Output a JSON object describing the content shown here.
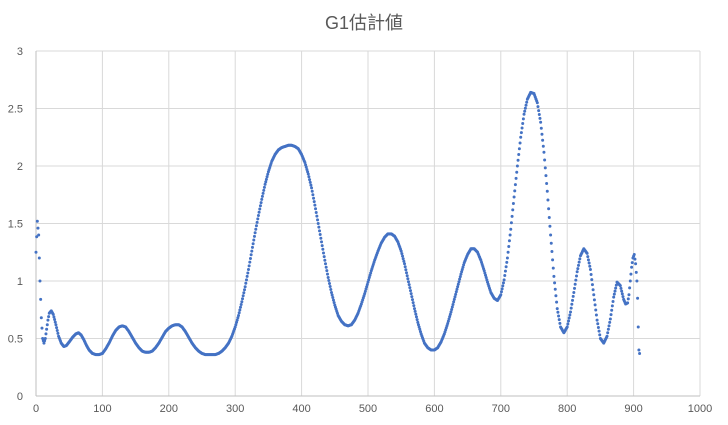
{
  "chart_data": {
    "type": "scatter",
    "title": "G1估計値",
    "xlabel": "",
    "ylabel": "",
    "xlim": [
      0,
      1000
    ],
    "ylim": [
      0,
      3
    ],
    "x_ticks": [
      0,
      100,
      200,
      300,
      400,
      500,
      600,
      700,
      800,
      900,
      1000
    ],
    "y_ticks": [
      0,
      0.5,
      1,
      1.5,
      2,
      2.5,
      3
    ],
    "grid": true,
    "legend": "none",
    "marker_color": "#4472c4",
    "series": [
      {
        "values": [
          [
            0,
            1.25
          ],
          [
            2,
            1.52
          ],
          [
            4,
            1.4
          ],
          [
            6,
            1.0
          ],
          [
            8,
            0.68
          ],
          [
            10,
            0.5
          ],
          [
            12,
            0.46
          ],
          [
            14,
            0.5
          ],
          [
            16,
            0.58
          ],
          [
            18,
            0.66
          ],
          [
            20,
            0.72
          ],
          [
            23,
            0.74
          ],
          [
            26,
            0.71
          ],
          [
            30,
            0.62
          ],
          [
            34,
            0.52
          ],
          [
            38,
            0.46
          ],
          [
            42,
            0.43
          ],
          [
            46,
            0.44
          ],
          [
            50,
            0.47
          ],
          [
            55,
            0.51
          ],
          [
            60,
            0.54
          ],
          [
            64,
            0.55
          ],
          [
            68,
            0.53
          ],
          [
            72,
            0.49
          ],
          [
            76,
            0.44
          ],
          [
            80,
            0.4
          ],
          [
            85,
            0.37
          ],
          [
            90,
            0.36
          ],
          [
            95,
            0.36
          ],
          [
            100,
            0.37
          ],
          [
            105,
            0.41
          ],
          [
            110,
            0.46
          ],
          [
            115,
            0.52
          ],
          [
            120,
            0.57
          ],
          [
            125,
            0.6
          ],
          [
            130,
            0.61
          ],
          [
            135,
            0.6
          ],
          [
            140,
            0.56
          ],
          [
            145,
            0.51
          ],
          [
            150,
            0.46
          ],
          [
            155,
            0.42
          ],
          [
            160,
            0.39
          ],
          [
            165,
            0.38
          ],
          [
            170,
            0.38
          ],
          [
            175,
            0.39
          ],
          [
            180,
            0.42
          ],
          [
            185,
            0.46
          ],
          [
            190,
            0.51
          ],
          [
            195,
            0.56
          ],
          [
            200,
            0.59
          ],
          [
            205,
            0.61
          ],
          [
            210,
            0.62
          ],
          [
            215,
            0.62
          ],
          [
            220,
            0.6
          ],
          [
            225,
            0.56
          ],
          [
            230,
            0.51
          ],
          [
            235,
            0.46
          ],
          [
            240,
            0.42
          ],
          [
            245,
            0.39
          ],
          [
            250,
            0.37
          ],
          [
            255,
            0.36
          ],
          [
            260,
            0.36
          ],
          [
            265,
            0.36
          ],
          [
            270,
            0.36
          ],
          [
            275,
            0.37
          ],
          [
            280,
            0.39
          ],
          [
            285,
            0.42
          ],
          [
            290,
            0.46
          ],
          [
            295,
            0.52
          ],
          [
            300,
            0.6
          ],
          [
            305,
            0.7
          ],
          [
            310,
            0.82
          ],
          [
            315,
            0.95
          ],
          [
            320,
            1.1
          ],
          [
            325,
            1.26
          ],
          [
            330,
            1.42
          ],
          [
            335,
            1.57
          ],
          [
            340,
            1.71
          ],
          [
            345,
            1.84
          ],
          [
            350,
            1.95
          ],
          [
            355,
            2.04
          ],
          [
            360,
            2.1
          ],
          [
            365,
            2.14
          ],
          [
            370,
            2.16
          ],
          [
            375,
            2.17
          ],
          [
            380,
            2.18
          ],
          [
            385,
            2.18
          ],
          [
            390,
            2.17
          ],
          [
            395,
            2.15
          ],
          [
            400,
            2.1
          ],
          [
            405,
            2.03
          ],
          [
            410,
            1.93
          ],
          [
            415,
            1.81
          ],
          [
            420,
            1.66
          ],
          [
            425,
            1.5
          ],
          [
            430,
            1.34
          ],
          [
            435,
            1.18
          ],
          [
            440,
            1.03
          ],
          [
            445,
            0.9
          ],
          [
            450,
            0.79
          ],
          [
            455,
            0.7
          ],
          [
            460,
            0.65
          ],
          [
            465,
            0.62
          ],
          [
            470,
            0.61
          ],
          [
            475,
            0.62
          ],
          [
            480,
            0.66
          ],
          [
            485,
            0.72
          ],
          [
            490,
            0.8
          ],
          [
            495,
            0.89
          ],
          [
            500,
            0.99
          ],
          [
            505,
            1.09
          ],
          [
            510,
            1.18
          ],
          [
            515,
            1.26
          ],
          [
            520,
            1.33
          ],
          [
            525,
            1.38
          ],
          [
            530,
            1.41
          ],
          [
            535,
            1.41
          ],
          [
            540,
            1.39
          ],
          [
            545,
            1.34
          ],
          [
            550,
            1.26
          ],
          [
            555,
            1.15
          ],
          [
            560,
            1.02
          ],
          [
            565,
            0.89
          ],
          [
            570,
            0.76
          ],
          [
            575,
            0.64
          ],
          [
            580,
            0.54
          ],
          [
            585,
            0.46
          ],
          [
            590,
            0.42
          ],
          [
            595,
            0.4
          ],
          [
            600,
            0.4
          ],
          [
            605,
            0.42
          ],
          [
            610,
            0.47
          ],
          [
            615,
            0.54
          ],
          [
            620,
            0.63
          ],
          [
            625,
            0.73
          ],
          [
            630,
            0.84
          ],
          [
            635,
            0.95
          ],
          [
            640,
            1.06
          ],
          [
            645,
            1.16
          ],
          [
            650,
            1.23
          ],
          [
            655,
            1.28
          ],
          [
            660,
            1.28
          ],
          [
            665,
            1.25
          ],
          [
            670,
            1.18
          ],
          [
            675,
            1.09
          ],
          [
            680,
            0.99
          ],
          [
            685,
            0.9
          ],
          [
            690,
            0.85
          ],
          [
            695,
            0.83
          ],
          [
            700,
            0.88
          ],
          [
            705,
            1.01
          ],
          [
            710,
            1.2
          ],
          [
            715,
            1.45
          ],
          [
            720,
            1.73
          ],
          [
            725,
            2.0
          ],
          [
            730,
            2.25
          ],
          [
            735,
            2.45
          ],
          [
            740,
            2.58
          ],
          [
            745,
            2.64
          ],
          [
            750,
            2.63
          ],
          [
            755,
            2.55
          ],
          [
            760,
            2.38
          ],
          [
            765,
            2.12
          ],
          [
            770,
            1.78
          ],
          [
            775,
            1.4
          ],
          [
            780,
            1.04
          ],
          [
            785,
            0.76
          ],
          [
            790,
            0.6
          ],
          [
            795,
            0.55
          ],
          [
            800,
            0.6
          ],
          [
            805,
            0.73
          ],
          [
            810,
            0.9
          ],
          [
            815,
            1.08
          ],
          [
            820,
            1.22
          ],
          [
            825,
            1.28
          ],
          [
            830,
            1.24
          ],
          [
            835,
            1.1
          ],
          [
            840,
            0.88
          ],
          [
            845,
            0.66
          ],
          [
            850,
            0.5
          ],
          [
            855,
            0.46
          ],
          [
            860,
            0.52
          ],
          [
            865,
            0.67
          ],
          [
            870,
            0.86
          ],
          [
            875,
            0.99
          ],
          [
            880,
            0.96
          ],
          [
            885,
            0.84
          ],
          [
            888,
            0.8
          ],
          [
            891,
            0.81
          ],
          [
            893,
            0.88
          ],
          [
            895,
            1.0
          ],
          [
            897,
            1.12
          ],
          [
            899,
            1.2
          ],
          [
            901,
            1.23
          ],
          [
            903,
            1.15
          ],
          [
            905,
            1.0
          ],
          [
            906,
            0.85
          ],
          [
            907,
            0.6
          ],
          [
            908,
            0.4
          ],
          [
            909,
            0.37
          ]
        ]
      }
    ]
  }
}
